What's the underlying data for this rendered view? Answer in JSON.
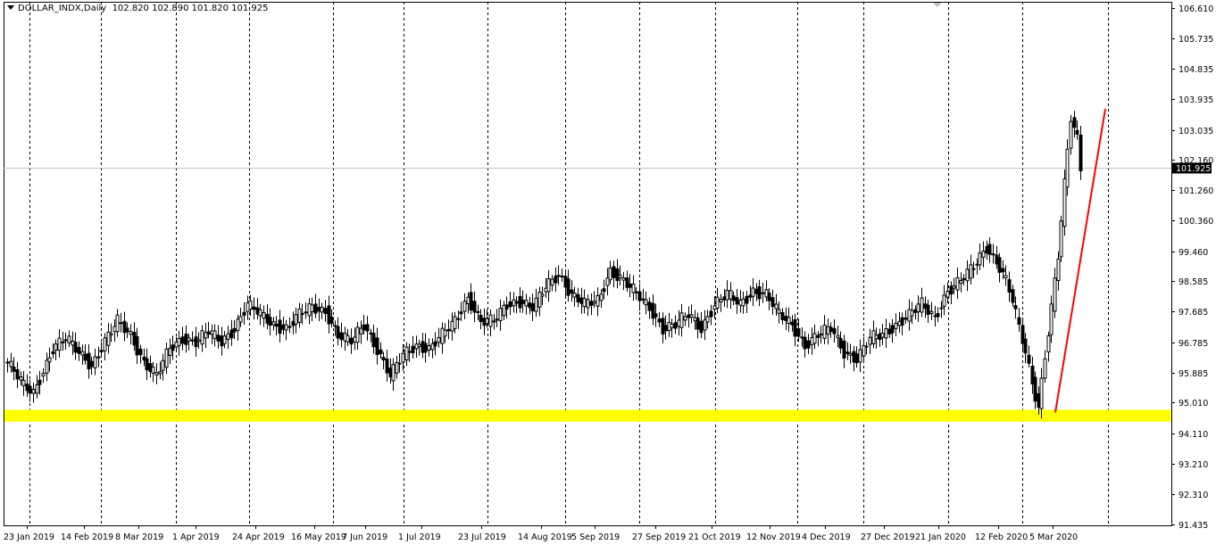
{
  "header": {
    "symbol": "DOLLAR_INDX,Daily",
    "ohlc": "102.820 102.890 101.820 101.925"
  },
  "colors": {
    "background": "#ffffff",
    "candle": "#000000",
    "support_band": "#ffff00",
    "trend_line": "#ff0000",
    "current_price_line": "#c0c0c0"
  },
  "chart_data": {
    "type": "candlestick",
    "title": "DOLLAR_INDX,Daily",
    "ylim": [
      91.4,
      106.8
    ],
    "y_ticks": [
      "106.610",
      "105.735",
      "104.835",
      "103.935",
      "103.035",
      "102.160",
      "101.260",
      "100.360",
      "99.460",
      "98.585",
      "97.685",
      "96.785",
      "95.885",
      "95.010",
      "94.110",
      "93.210",
      "92.310",
      "91.435"
    ],
    "x_ticks": [
      "23 Jan 2019",
      "14 Feb 2019",
      "8 Mar 2019",
      "1 Apr 2019",
      "24 Apr 2019",
      "16 May 2019",
      "7 Jun 2019",
      "1 Jul 2019",
      "23 Jul 2019",
      "14 Aug 2019",
      "5 Sep 2019",
      "27 Sep 2019",
      "21 Oct 2019",
      "12 Nov 2019",
      "4 Dec 2019",
      "27 Dec 2019",
      "21 Jan 2020",
      "12 Feb 2020",
      "5 Mar 2020"
    ],
    "vertical_grid": "dashed",
    "current_price": "101.925",
    "support_zone": [
      94.45,
      94.8
    ],
    "trend_line": {
      "from": [
        "12 Mar 2020",
        94.7
      ],
      "to": [
        "3 Apr 2020",
        103.6
      ]
    },
    "close_path": [
      [
        0,
        96.2
      ],
      [
        5,
        95.5
      ],
      [
        8,
        95.3
      ],
      [
        14,
        96.6
      ],
      [
        18,
        96.9
      ],
      [
        22,
        96.5
      ],
      [
        26,
        96.1
      ],
      [
        30,
        96.8
      ],
      [
        34,
        97.4
      ],
      [
        38,
        97.0
      ],
      [
        42,
        96.2
      ],
      [
        46,
        95.8
      ],
      [
        50,
        96.6
      ],
      [
        54,
        96.9
      ],
      [
        58,
        96.8
      ],
      [
        62,
        97.1
      ],
      [
        66,
        96.8
      ],
      [
        70,
        97.2
      ],
      [
        74,
        97.9
      ],
      [
        78,
        97.6
      ],
      [
        82,
        97.3
      ],
      [
        86,
        97.2
      ],
      [
        90,
        97.6
      ],
      [
        94,
        97.8
      ],
      [
        98,
        97.7
      ],
      [
        102,
        97.0
      ],
      [
        106,
        96.8
      ],
      [
        110,
        97.3
      ],
      [
        114,
        96.6
      ],
      [
        118,
        95.8
      ],
      [
        122,
        96.4
      ],
      [
        126,
        96.7
      ],
      [
        130,
        96.6
      ],
      [
        134,
        97.0
      ],
      [
        138,
        97.4
      ],
      [
        142,
        98.1
      ],
      [
        146,
        97.4
      ],
      [
        150,
        97.4
      ],
      [
        154,
        97.9
      ],
      [
        158,
        98.0
      ],
      [
        162,
        97.8
      ],
      [
        166,
        98.4
      ],
      [
        170,
        98.8
      ],
      [
        174,
        98.2
      ],
      [
        178,
        97.9
      ],
      [
        182,
        98.0
      ],
      [
        186,
        98.9
      ],
      [
        190,
        98.6
      ],
      [
        194,
        98.2
      ],
      [
        198,
        97.8
      ],
      [
        202,
        97.2
      ],
      [
        206,
        97.3
      ],
      [
        210,
        97.6
      ],
      [
        214,
        97.2
      ],
      [
        218,
        97.9
      ],
      [
        222,
        98.2
      ],
      [
        226,
        97.9
      ],
      [
        230,
        98.3
      ],
      [
        234,
        98.2
      ],
      [
        238,
        97.6
      ],
      [
        242,
        97.3
      ],
      [
        246,
        96.7
      ],
      [
        250,
        97.0
      ],
      [
        254,
        97.2
      ],
      [
        258,
        96.5
      ],
      [
        262,
        96.3
      ],
      [
        266,
        96.9
      ],
      [
        270,
        97.0
      ],
      [
        274,
        97.3
      ],
      [
        278,
        97.6
      ],
      [
        282,
        97.9
      ],
      [
        286,
        97.5
      ],
      [
        290,
        98.3
      ],
      [
        294,
        98.6
      ],
      [
        298,
        99.0
      ],
      [
        302,
        99.6
      ],
      [
        306,
        99.0
      ],
      [
        308,
        98.6
      ],
      [
        310,
        98.0
      ],
      [
        312,
        97.2
      ],
      [
        314,
        96.5
      ],
      [
        316,
        95.6
      ],
      [
        318,
        94.9
      ],
      [
        320,
        96.4
      ],
      [
        322,
        97.8
      ],
      [
        324,
        99.3
      ],
      [
        326,
        101.4
      ],
      [
        328,
        103.4
      ],
      [
        330,
        102.8
      ],
      [
        331,
        101.925
      ]
    ]
  }
}
